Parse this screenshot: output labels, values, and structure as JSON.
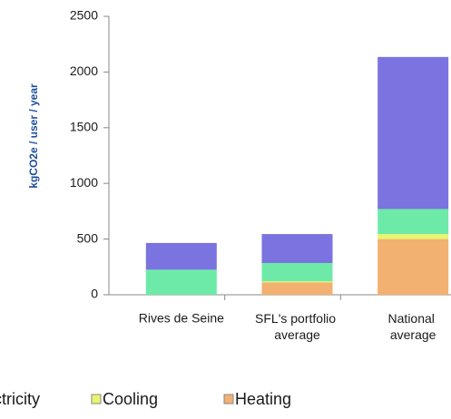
{
  "chart_data": {
    "type": "stacked_bar",
    "y_label": "kgCO2e / user / year",
    "categories": [
      "Rives de Seine",
      "SFL's portfolio average",
      "National average"
    ],
    "series": [
      {
        "name": "Heating",
        "color": "#f2b170",
        "values": [
          0,
          110,
          500
        ]
      },
      {
        "name": "Cooling",
        "color": "#e8f56e",
        "values": [
          0,
          10,
          45
        ]
      },
      {
        "name": "Electricity",
        "color": "#6eeaa8",
        "values": [
          225,
          165,
          225
        ]
      },
      {
        "color": "#7a73e0",
        "values": [
          240,
          260,
          1365
        ]
      }
    ],
    "ylim": [
      0,
      2500
    ],
    "yticks": [
      0,
      500,
      1000,
      1500,
      2000,
      2500
    ]
  }
}
